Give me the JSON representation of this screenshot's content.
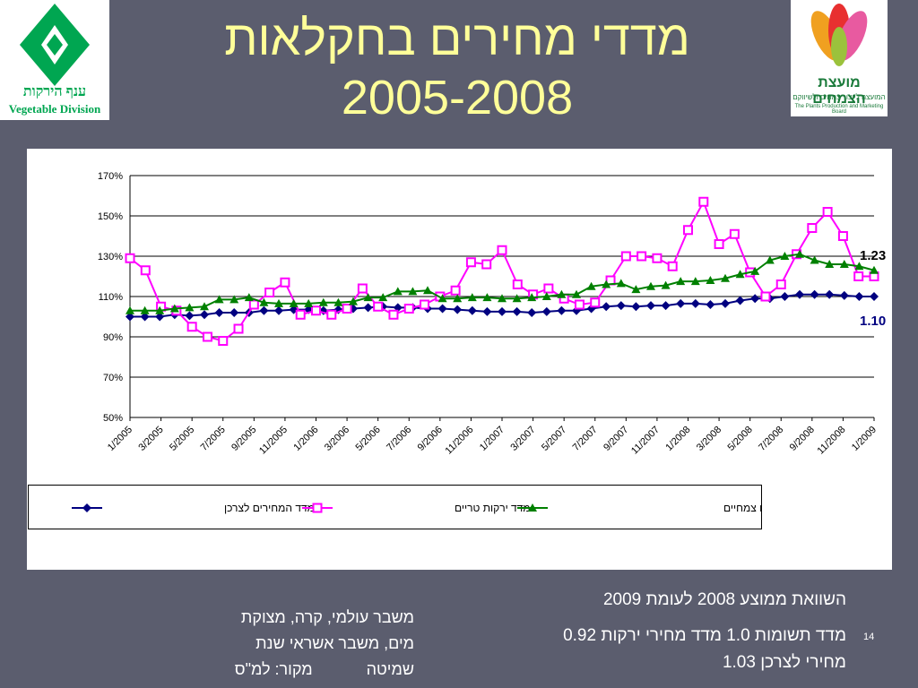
{
  "slide": {
    "title_line1": "מדדי מחירים בחקלאות",
    "title_line2": "2005-2008",
    "page_number": "14",
    "logo_left_text_he": "ענף הירקות",
    "logo_left_text_en": "Vegetable Division",
    "logo_right_text_he": "מועצת הצמחים",
    "logo_right_sub_he": "המועצה לייצור צמחים ולשיווקם",
    "logo_right_sub_en": "The Plants Production and Marketing Board",
    "note_right_line1": "השוואת ממוצע 2008 לעומת 2009",
    "note_right_line2": "מדד תשומות 1.0 מדד מחירי ירקות 0.92",
    "note_right_line3": "מחירי לצרכן 1.03",
    "note_left_line1": "משבר עולמי, קרה, מצוקת",
    "note_left_line2": "מים, משבר אשראי  שנת",
    "note_left_line3": "שמיטה            מקור: למ\"ס",
    "colors": {
      "background": "#5b5d6e",
      "title": "#ffff99"
    }
  },
  "chart_data": {
    "type": "line",
    "ylim": [
      50,
      170
    ],
    "yticks": [
      "50%",
      "70%",
      "90%",
      "110%",
      "130%",
      "150%",
      "170%"
    ],
    "xtick_labels": [
      "1/2005",
      "3/2005",
      "5/2005",
      "7/2005",
      "9/2005",
      "11/2005",
      "1/2006",
      "3/2006",
      "5/2006",
      "7/2006",
      "9/2006",
      "11/2006",
      "1/2007",
      "3/2007",
      "5/2007",
      "7/2007",
      "9/2007",
      "11/2007",
      "1/2008",
      "3/2008",
      "5/2008",
      "7/2008",
      "9/2008",
      "11/2008",
      "1/2009"
    ],
    "annotations": [
      {
        "text": "1.23",
        "series": 2,
        "color": "#000000"
      },
      {
        "text": "1.10",
        "series": 0,
        "color": "#000080"
      }
    ],
    "series": [
      {
        "name": "מדד המחירים לצרכן",
        "color": "#000080",
        "marker": "diamond",
        "values": [
          100,
          100,
          100,
          101,
          100.5,
          101,
          102,
          102,
          102,
          103,
          103,
          103.5,
          103.5,
          103,
          103.5,
          104,
          104.5,
          105,
          104.5,
          104.5,
          104,
          104,
          103.5,
          103,
          102.5,
          102.5,
          102.5,
          102,
          102.5,
          103,
          103,
          104,
          105,
          105.5,
          105,
          105.5,
          105.5,
          106.5,
          106.5,
          106,
          106.5,
          108,
          109,
          109,
          110,
          111,
          111,
          111,
          110.5,
          110,
          110
        ]
      },
      {
        "name": "מדד ירקות טריים",
        "color": "#ff00ff",
        "marker": "square",
        "values": [
          129,
          123,
          105,
          103,
          95,
          90,
          88,
          94,
          106,
          112,
          117,
          101,
          103,
          101,
          104,
          114,
          105,
          101,
          104,
          106,
          110,
          113,
          127,
          126,
          133,
          116,
          111,
          114,
          109,
          106,
          107,
          118,
          130,
          130,
          129,
          125,
          143,
          157,
          136,
          141,
          122,
          110,
          116,
          131,
          144,
          152,
          140,
          120,
          120
        ]
      },
      {
        "name": "מדד תשומות בגידולים צמחיים",
        "color": "#008000",
        "marker": "triangle",
        "values": [
          103,
          103,
          103,
          104,
          104.5,
          105,
          108.5,
          108.5,
          109.5,
          107,
          106.5,
          106.5,
          106.5,
          107,
          107,
          107.5,
          109.5,
          109.5,
          112.5,
          112.5,
          113,
          109,
          109,
          109.5,
          109.5,
          109,
          109,
          109.5,
          110,
          111,
          111,
          115,
          116,
          116.5,
          113.5,
          115,
          115.5,
          117.5,
          117.5,
          118,
          119,
          121,
          122.5,
          128,
          130,
          131,
          128,
          126,
          126,
          125,
          123
        ]
      }
    ]
  }
}
